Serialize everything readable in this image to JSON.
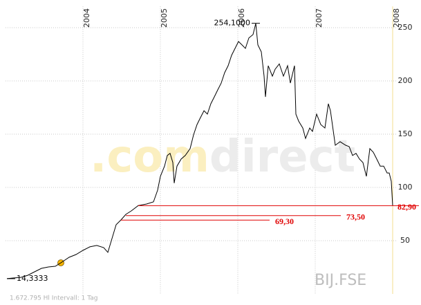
{
  "chart_data": {
    "type": "line",
    "x": [
      2003.018,
      2003.107,
      2003.196,
      2003.286,
      2003.375,
      2003.464,
      2003.554,
      2003.643,
      2003.714,
      2003.821,
      2003.911,
      2004.0,
      2004.089,
      2004.179,
      2004.268,
      2004.321,
      2004.375,
      2004.429,
      2004.491,
      2004.554,
      2004.625,
      2004.714,
      2004.821,
      2004.911,
      2004.964,
      2005.0,
      2005.054,
      2005.089,
      2005.125,
      2005.161,
      2005.179,
      2005.214,
      2005.268,
      2005.321,
      2005.384,
      2005.429,
      2005.473,
      2005.518,
      2005.563,
      2005.607,
      2005.652,
      2005.696,
      2005.741,
      2005.786,
      2005.83,
      2005.875,
      2005.92,
      2005.964,
      2006.009,
      2006.054,
      2006.098,
      2006.143,
      2006.196,
      2006.232,
      2006.259,
      2006.304,
      2006.339,
      2006.357,
      2006.393,
      2006.446,
      2006.482,
      2006.536,
      2006.589,
      2006.643,
      2006.679,
      2006.732,
      2006.75,
      2006.786,
      2006.839,
      2006.875,
      2006.929,
      2006.964,
      2007.018,
      2007.071,
      2007.125,
      2007.17,
      2007.196,
      2007.259,
      2007.321,
      2007.393,
      2007.438,
      2007.482,
      2007.527,
      2007.571,
      2007.616,
      2007.661,
      2007.705,
      2007.75,
      2007.795,
      2007.839,
      2007.884,
      2007.929,
      2007.955,
      2007.982,
      2008.0
    ],
    "values": [
      14.3333,
      15,
      15.5,
      17.5,
      20.8,
      24,
      25.3,
      26,
      29.2,
      34.4,
      37,
      40.9,
      44.2,
      45.5,
      43.5,
      39,
      52,
      65,
      69.5,
      74.7,
      78,
      83,
      84.4,
      86.4,
      97.4,
      110.4,
      120,
      130,
      132,
      123.4,
      104,
      120,
      126.6,
      130,
      136.4,
      149.4,
      159,
      165.6,
      172,
      168.8,
      178.6,
      185,
      191.6,
      198,
      207.8,
      214.3,
      224,
      230.5,
      237,
      233.8,
      230.5,
      240.3,
      243.5,
      254.1,
      233.8,
      227.3,
      204.5,
      185,
      214.3,
      204.5,
      211,
      216,
      204.5,
      214.3,
      198,
      214.3,
      168.8,
      162.3,
      155.8,
      146,
      155.8,
      152.6,
      168.8,
      159,
      155.8,
      178.6,
      172,
      139.6,
      142.9,
      139.6,
      138.3,
      130,
      132,
      126.6,
      123.4,
      110.4,
      136.4,
      133,
      126.6,
      120,
      120,
      113.6,
      113.6,
      105.8,
      82.9
    ],
    "color": "#000000",
    "xlim": [
      2003.0,
      2008.05
    ],
    "xticks": [
      2004,
      2005,
      2006,
      2007,
      2008
    ],
    "ylim": [
      0,
      270
    ],
    "yticks": [
      50,
      100,
      150,
      200,
      250
    ],
    "grid": true,
    "max_label": {
      "value": 254.1,
      "label": "254,1000"
    },
    "min_label": {
      "value": 14.3333,
      "label": "14,3333"
    },
    "levels": [
      {
        "value": 82.9,
        "label": "82,90"
      },
      {
        "value": 73.5,
        "label": "73,50"
      },
      {
        "value": 69.3,
        "label": "69,30"
      }
    ],
    "level_color": "#e00000",
    "watermark": [
      ".com",
      "direct"
    ],
    "symbol": "BIJ.FSE",
    "footer": "1.672.795 Hl Intervall: 1 Tag"
  }
}
